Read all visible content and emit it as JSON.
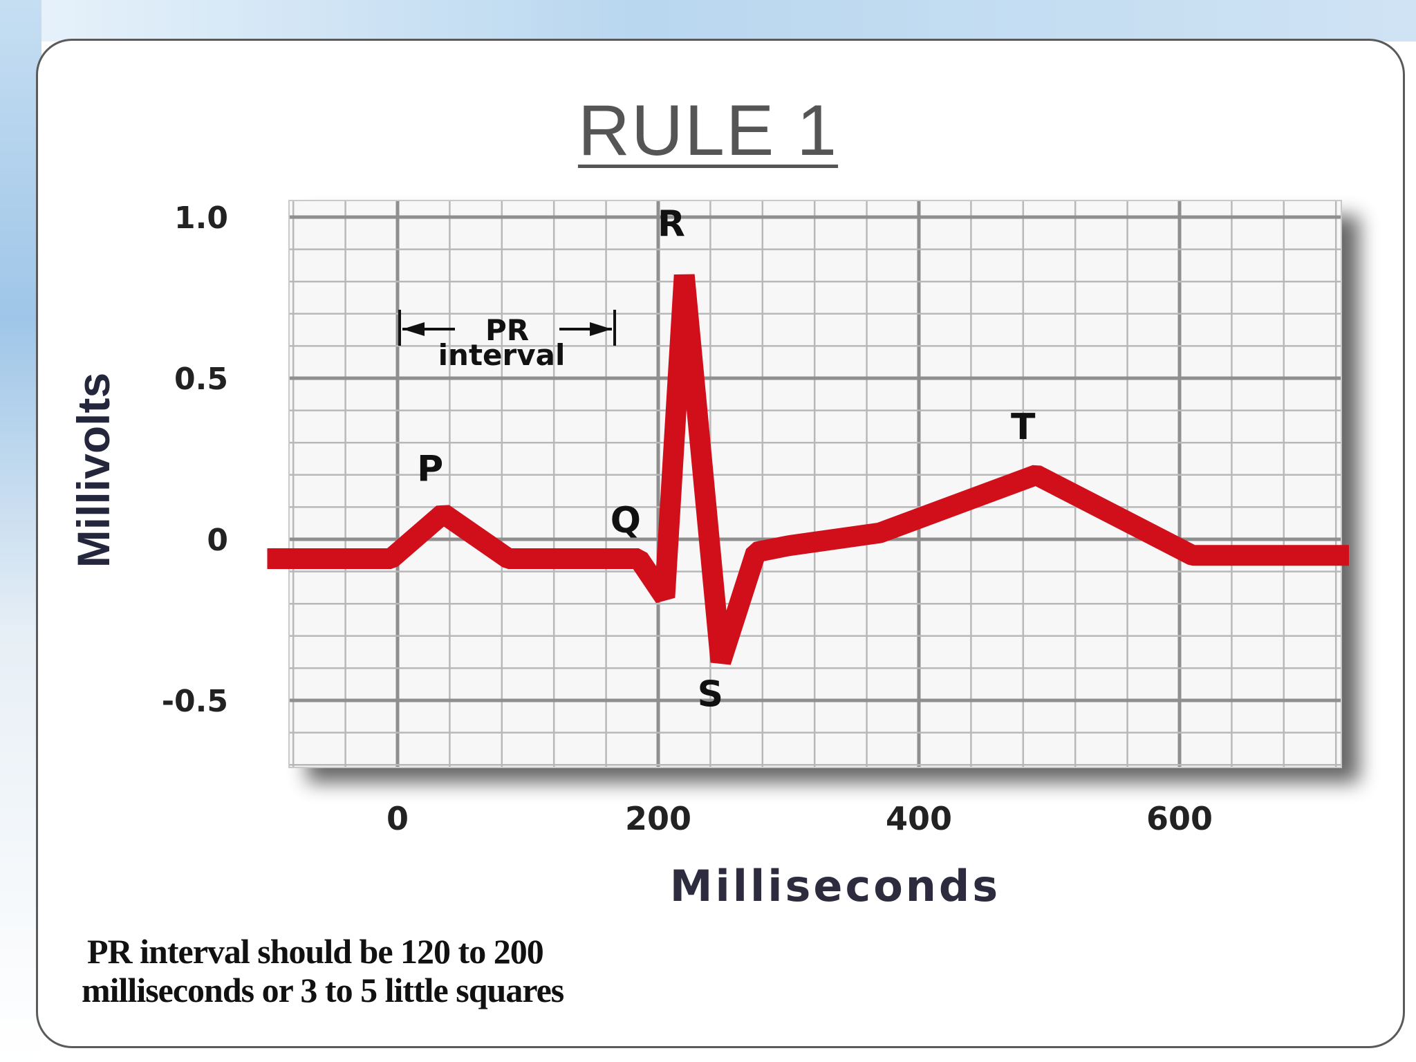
{
  "title": "RULE 1",
  "note": {
    "line1": "PR interval should be 120 to 200",
    "line2": "milliseconds or 3 to 5 little squares"
  },
  "colors": {
    "trace": "#d10f1b",
    "grid": "#b8b8b8",
    "grid_major": "#8f8f8f",
    "card_border": "#5a5a5a"
  },
  "chart_data": {
    "type": "line",
    "xlabel": "Milliseconds",
    "ylabel": "Millivolts",
    "xlim": [
      -100,
      730
    ],
    "ylim": [
      -0.7,
      1.05
    ],
    "xticks": [
      {
        "value": 0,
        "label": "0"
      },
      {
        "value": 200,
        "label": "200"
      },
      {
        "value": 400,
        "label": "400"
      },
      {
        "value": 600,
        "label": "600"
      }
    ],
    "yticks": [
      {
        "value": 1.0,
        "label": "1.0"
      },
      {
        "value": 0.5,
        "label": "0.5"
      },
      {
        "value": 0,
        "label": "0"
      },
      {
        "value": -0.5,
        "label": "-0.5"
      }
    ],
    "grid": true,
    "series": [
      {
        "x": [
          -100,
          -5,
          35,
          85,
          115,
          165,
          185,
          205,
          220,
          248,
          275,
          300,
          370,
          490,
          610,
          730
        ],
        "y": [
          -0.06,
          -0.06,
          0.08,
          -0.06,
          -0.06,
          -0.06,
          -0.06,
          -0.18,
          0.82,
          -0.38,
          -0.04,
          -0.02,
          0.02,
          0.2,
          -0.05,
          -0.05
        ]
      }
    ],
    "annotations": [
      {
        "label": "P",
        "x": 25,
        "y": 0.22
      },
      {
        "label": "Q",
        "x": 175,
        "y": 0.06
      },
      {
        "label": "R",
        "x": 210,
        "y": 0.98
      },
      {
        "label": "S",
        "x": 240,
        "y": -0.48
      },
      {
        "label": "T",
        "x": 480,
        "y": 0.35
      }
    ],
    "pr_interval": {
      "label_line1": "PR",
      "label_line2": "interval",
      "x_start": 0,
      "x_end": 165
    }
  }
}
